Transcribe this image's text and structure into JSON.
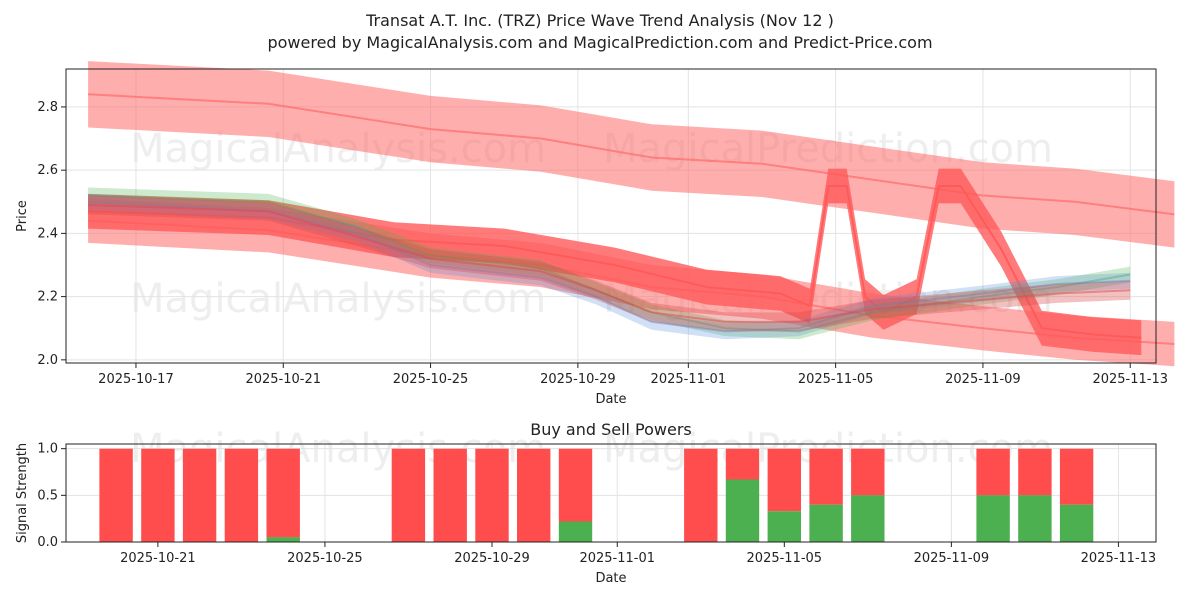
{
  "title_line1": "Transat A.T. Inc. (TRZ) Price Wave Trend Analysis (Nov 12 )",
  "title_line2": "powered by MagicalAnalysis.com and MagicalPrediction.com and Predict-Price.com",
  "watermarks": [
    "MagicalAnalysis.com",
    "MagicalPrediction.com"
  ],
  "chart_data": [
    {
      "type": "area",
      "title": "Transat A.T. Inc. (TRZ) Price Wave Trend Analysis (Nov 12 )",
      "xlabel": "Date",
      "ylabel": "Price",
      "ylim": [
        1.99,
        2.92
      ],
      "grid": true,
      "x_ticks": [
        {
          "label": "2025-10-17",
          "day": -15
        },
        {
          "label": "2025-10-21",
          "day": -11
        },
        {
          "label": "2025-10-25",
          "day": -7
        },
        {
          "label": "2025-10-29",
          "day": -3
        },
        {
          "label": "2025-11-01",
          "day": 0
        },
        {
          "label": "2025-11-05",
          "day": 4
        },
        {
          "label": "2025-11-09",
          "day": 8
        },
        {
          "label": "2025-11-13",
          "day": 12
        }
      ],
      "y_ticks": [
        2.0,
        2.2,
        2.4,
        2.6,
        2.8
      ],
      "series": [
        {
          "name": "upper trend band",
          "color": "#ff6b6b",
          "opacity": 0.55,
          "points": [
            [
              -16.3,
              2.84
            ],
            [
              -11.4,
              2.81
            ],
            [
              -7.0,
              2.73
            ],
            [
              -4.0,
              2.7
            ],
            [
              -1.0,
              2.64
            ],
            [
              2.0,
              2.62
            ],
            [
              5.0,
              2.57
            ],
            [
              8.0,
              2.52
            ],
            [
              10.5,
              2.5
            ],
            [
              13.2,
              2.46
            ]
          ],
          "width": 0.21
        },
        {
          "name": "lower trend band",
          "color": "#ff6b6b",
          "opacity": 0.55,
          "points": [
            [
              -16.3,
              2.44
            ],
            [
              -11.4,
              2.41
            ],
            [
              -7.0,
              2.33
            ],
            [
              -4.0,
              2.3
            ],
            [
              -1.0,
              2.23
            ],
            [
              2.0,
              2.2
            ],
            [
              5.0,
              2.14
            ],
            [
              8.0,
              2.1
            ],
            [
              10.5,
              2.07
            ],
            [
              13.2,
              2.05
            ]
          ],
          "width": 0.14
        },
        {
          "name": "wave forecast",
          "color": "#ff5a5a",
          "opacity": 0.8,
          "points": [
            [
              -16.3,
              2.47
            ],
            [
              -11.4,
              2.45
            ],
            [
              -8.0,
              2.38
            ],
            [
              -5.0,
              2.36
            ],
            [
              -2.0,
              2.3
            ],
            [
              0.5,
              2.23
            ],
            [
              2.5,
              2.21
            ],
            [
              3.3,
              2.17
            ],
            [
              3.8,
              2.55
            ],
            [
              4.3,
              2.55
            ],
            [
              4.8,
              2.2
            ],
            [
              5.3,
              2.15
            ],
            [
              6.2,
              2.2
            ],
            [
              6.8,
              2.55
            ],
            [
              7.4,
              2.55
            ],
            [
              8.5,
              2.35
            ],
            [
              9.6,
              2.1
            ],
            [
              11.0,
              2.08
            ],
            [
              12.3,
              2.07
            ]
          ],
          "width": 0.11
        },
        {
          "name": "price waves (green)",
          "color": "#4caf50",
          "opacity": 0.28,
          "points": [
            [
              -16.3,
              2.52
            ],
            [
              -11.4,
              2.5
            ],
            [
              -9.0,
              2.42
            ],
            [
              -7.0,
              2.33
            ],
            [
              -4.0,
              2.29
            ],
            [
              -2.5,
              2.22
            ],
            [
              -1.0,
              2.15
            ],
            [
              1.0,
              2.1
            ],
            [
              3.0,
              2.09
            ],
            [
              5.0,
              2.15
            ],
            [
              8.0,
              2.2
            ],
            [
              10.0,
              2.23
            ],
            [
              12.0,
              2.27
            ]
          ],
          "width": 0.05
        },
        {
          "name": "price waves (blue)",
          "color": "#5b8ed6",
          "opacity": 0.28,
          "points": [
            [
              -16.3,
              2.5
            ],
            [
              -11.4,
              2.47
            ],
            [
              -9.0,
              2.4
            ],
            [
              -7.0,
              2.3
            ],
            [
              -4.0,
              2.26
            ],
            [
              -2.5,
              2.2
            ],
            [
              -1.0,
              2.12
            ],
            [
              1.0,
              2.09
            ],
            [
              3.0,
              2.1
            ],
            [
              5.0,
              2.17
            ],
            [
              8.0,
              2.21
            ],
            [
              10.0,
              2.24
            ],
            [
              12.0,
              2.25
            ]
          ],
          "width": 0.05
        },
        {
          "name": "price waves (red)",
          "color": "#d94b4b",
          "opacity": 0.35,
          "points": [
            [
              -16.3,
              2.49
            ],
            [
              -11.4,
              2.47
            ],
            [
              -9.0,
              2.39
            ],
            [
              -7.0,
              2.32
            ],
            [
              -4.0,
              2.28
            ],
            [
              -2.5,
              2.22
            ],
            [
              -1.0,
              2.15
            ],
            [
              1.0,
              2.12
            ],
            [
              3.0,
              2.12
            ],
            [
              5.0,
              2.16
            ],
            [
              8.0,
              2.19
            ],
            [
              10.0,
              2.21
            ],
            [
              12.0,
              2.22
            ]
          ],
          "width": 0.06
        }
      ]
    },
    {
      "type": "bar",
      "title": "Buy and Sell Powers",
      "xlabel": "Date",
      "ylabel": "Signal Strength",
      "ylim": [
        0,
        1.05
      ],
      "y_ticks": [
        "0.0",
        "0.5",
        "1.0"
      ],
      "x_ticks": [
        {
          "label": "2025-10-21",
          "day": -11
        },
        {
          "label": "2025-10-25",
          "day": -7
        },
        {
          "label": "2025-10-29",
          "day": -3
        },
        {
          "label": "2025-11-01",
          "day": 0
        },
        {
          "label": "2025-11-05",
          "day": 4
        },
        {
          "label": "2025-11-09",
          "day": 8
        },
        {
          "label": "2025-11-13",
          "day": 12
        }
      ],
      "colors": {
        "buy": "#4caf50",
        "sell": "#ff4d4d"
      },
      "bars": [
        {
          "day": -12,
          "buy": 0.0
        },
        {
          "day": -11,
          "buy": 0.0
        },
        {
          "day": -10,
          "buy": 0.0
        },
        {
          "day": -9,
          "buy": 0.0
        },
        {
          "day": -8,
          "buy": 0.05
        },
        {
          "day": -5,
          "buy": 0.0
        },
        {
          "day": -4,
          "buy": 0.0
        },
        {
          "day": -3,
          "buy": 0.0
        },
        {
          "day": -2,
          "buy": 0.0
        },
        {
          "day": -1,
          "buy": 0.22
        },
        {
          "day": 2,
          "buy": 0.0
        },
        {
          "day": 3,
          "buy": 0.67
        },
        {
          "day": 4,
          "buy": 0.33
        },
        {
          "day": 5,
          "buy": 0.4
        },
        {
          "day": 6,
          "buy": 0.5
        },
        {
          "day": 9,
          "buy": 0.5
        },
        {
          "day": 10,
          "buy": 0.5
        },
        {
          "day": 11,
          "buy": 0.4
        }
      ]
    }
  ]
}
